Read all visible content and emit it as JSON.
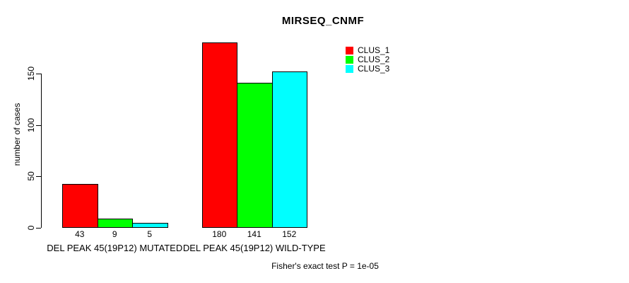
{
  "title": "MIRSEQ_CNMF",
  "ylabel": "number of cases",
  "footer": "Fisher's exact test P = 1e-05",
  "legend": {
    "position": "top-right",
    "items": [
      {
        "label": "CLUS_1",
        "color": "#ff0000"
      },
      {
        "label": "CLUS_2",
        "color": "#00ff00"
      },
      {
        "label": "CLUS_3",
        "color": "#00ffff"
      }
    ]
  },
  "chart_data": {
    "type": "bar",
    "title": "MIRSEQ_CNMF",
    "xlabel": "",
    "ylabel": "number of cases",
    "categories": [
      "DEL PEAK 45(19P12) MUTATED",
      "DEL PEAK 45(19P12) WILD-TYPE"
    ],
    "series": [
      {
        "name": "CLUS_1",
        "color": "#ff0000",
        "values": [
          43,
          180
        ]
      },
      {
        "name": "CLUS_2",
        "color": "#00ff00",
        "values": [
          9,
          141
        ]
      },
      {
        "name": "CLUS_3",
        "color": "#00ffff",
        "values": [
          5,
          152
        ]
      }
    ],
    "bar_value_labels": [
      [
        "43",
        "9",
        "5"
      ],
      [
        "180",
        "141",
        "152"
      ]
    ],
    "yticks": [
      0,
      50,
      100,
      150
    ],
    "ylim": [
      0,
      183
    ],
    "grid": false,
    "legend_position": "top-right",
    "annotation": "Fisher's exact test P = 1e-05"
  }
}
